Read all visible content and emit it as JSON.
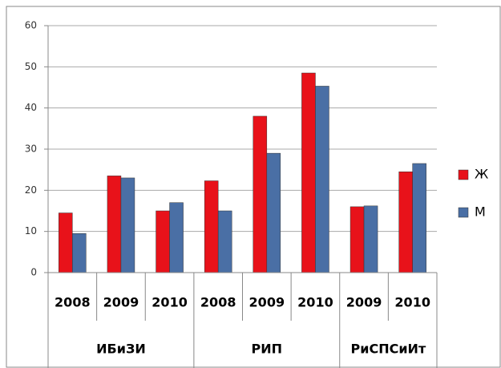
{
  "chart_data": {
    "type": "bar",
    "groups": [
      {
        "label": "ИБиЗИ",
        "categories": [
          "2008",
          "2009",
          "2010"
        ]
      },
      {
        "label": "РИП",
        "categories": [
          "2008",
          "2009",
          "2010"
        ]
      },
      {
        "label": "РиСПСиИт",
        "categories": [
          "2009",
          "2010"
        ]
      }
    ],
    "series": [
      {
        "name": "Ж",
        "color": "#e8121a",
        "values": [
          14.5,
          23.5,
          15,
          22.3,
          38,
          48.5,
          16,
          24.5
        ]
      },
      {
        "name": "М",
        "color": "#4a6fa5",
        "values": [
          9.5,
          23,
          17,
          15,
          29,
          45.3,
          16.2,
          26.5
        ]
      }
    ],
    "ylim": [
      0,
      60
    ],
    "yticks": [
      0,
      10,
      20,
      30,
      40,
      50,
      60
    ],
    "grid": true,
    "legend": "right"
  }
}
